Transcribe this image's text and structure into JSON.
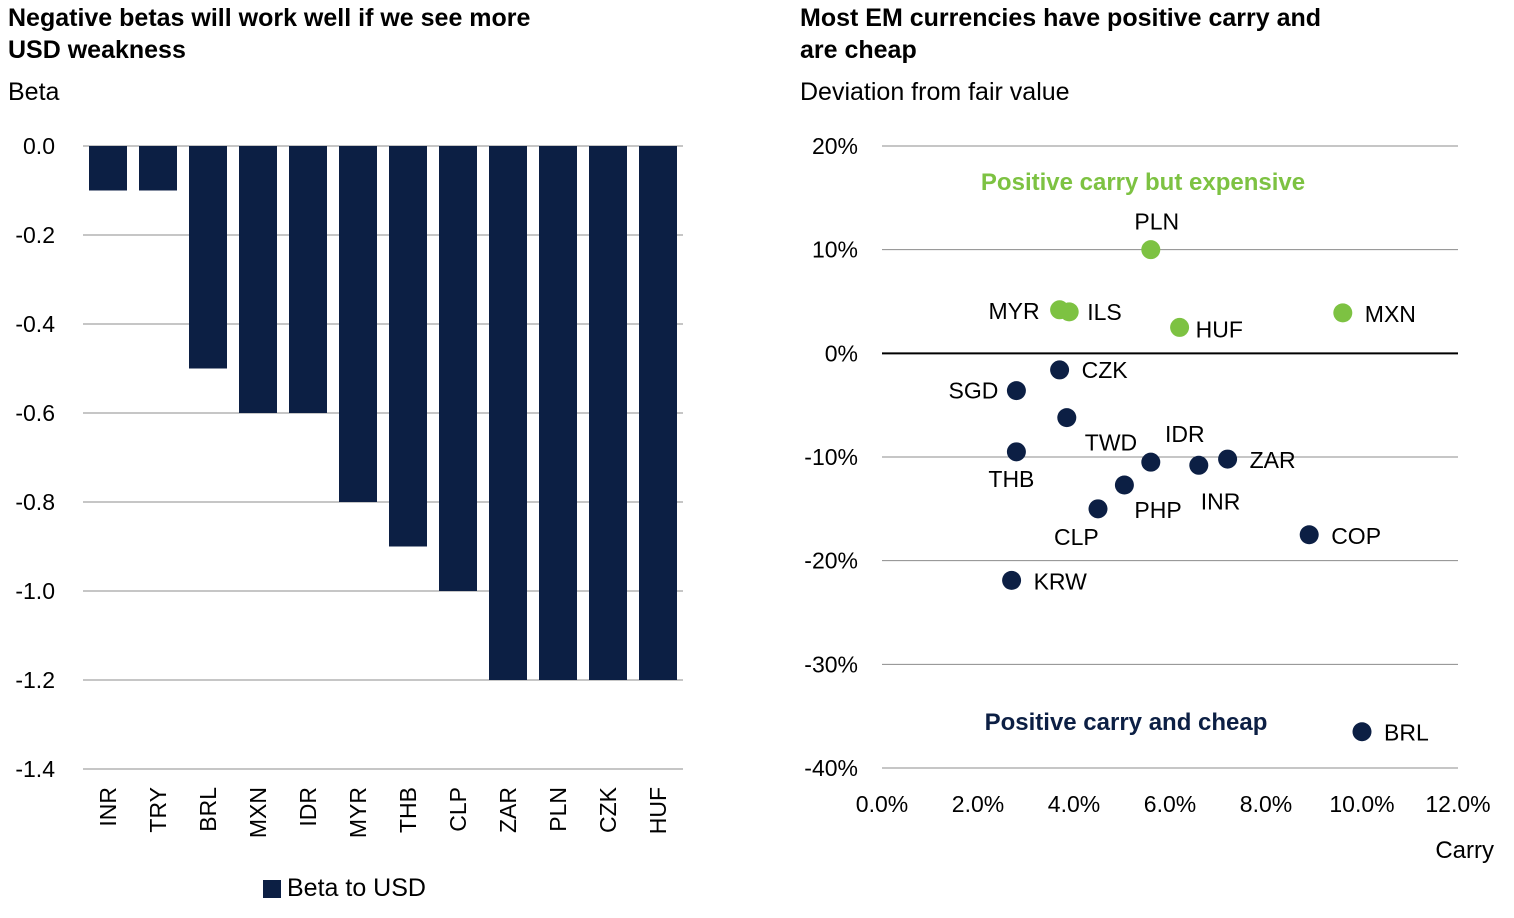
{
  "colors": {
    "navy": "#0c1f44",
    "green": "#7dc242",
    "grid": "#8c8c8c",
    "axis": "#000000"
  },
  "chart_data": [
    {
      "type": "bar",
      "title": "Negative betas will work well if we see more USD weakness",
      "title_lines": [
        "Negative betas will work well if we see more",
        "USD weakness"
      ],
      "ylabel": "Beta",
      "xlabel": "",
      "categories": [
        "INR",
        "TRY",
        "BRL",
        "MXN",
        "IDR",
        "MYR",
        "THB",
        "CLP",
        "ZAR",
        "PLN",
        "CZK",
        "HUF"
      ],
      "series": [
        {
          "name": "Beta to USD",
          "values": [
            -0.1,
            -0.1,
            -0.5,
            -0.6,
            -0.6,
            -0.8,
            -0.9,
            -1.0,
            -1.2,
            -1.2,
            -1.2,
            -1.2
          ]
        }
      ],
      "ylim": [
        -1.4,
        0.0
      ],
      "yticks": [
        0.0,
        -0.2,
        -0.4,
        -0.6,
        -0.8,
        -1.0,
        -1.2,
        -1.4
      ],
      "ytick_labels": [
        "0.0",
        "-0.2",
        "-0.4",
        "-0.6",
        "-0.8",
        "-1.0",
        "-1.2",
        "-1.4"
      ],
      "grid": true,
      "legend": {
        "entries": [
          "Beta to USD"
        ],
        "placement": "bottom"
      }
    },
    {
      "type": "scatter",
      "title": "Most EM currencies have positive carry and are cheap",
      "title_lines": [
        "Most EM currencies have positive carry and",
        "are cheap"
      ],
      "ylabel": "Deviation from fair value",
      "xlabel": "Carry",
      "xlim": [
        0,
        12
      ],
      "ylim": [
        -40,
        20
      ],
      "xticks": [
        0,
        2,
        4,
        6,
        8,
        10,
        12
      ],
      "xtick_labels": [
        "0.0%",
        "2.0%",
        "4.0%",
        "6.0%",
        "8.0%",
        "10.0%",
        "12.0%"
      ],
      "yticks": [
        20,
        10,
        0,
        -10,
        -20,
        -30,
        -40
      ],
      "ytick_labels": [
        "20%",
        "10%",
        "0%",
        "-10%",
        "-20%",
        "-30%",
        "-40%"
      ],
      "grid": true,
      "annotations": [
        {
          "text": "Positive carry but expensive",
          "group": "expensive"
        },
        {
          "text": "Positive carry and cheap",
          "group": "cheap"
        }
      ],
      "points": [
        {
          "label": "PLN",
          "x": 5.6,
          "y": 10.0,
          "group": "expensive"
        },
        {
          "label": "MYR",
          "x": 3.7,
          "y": 4.2,
          "group": "expensive"
        },
        {
          "label": "ILS",
          "x": 3.9,
          "y": 4.0,
          "group": "expensive"
        },
        {
          "label": "HUF",
          "x": 6.2,
          "y": 2.5,
          "group": "expensive"
        },
        {
          "label": "MXN",
          "x": 9.6,
          "y": 3.9,
          "group": "expensive"
        },
        {
          "label": "CZK",
          "x": 3.7,
          "y": -1.6,
          "group": "cheap"
        },
        {
          "label": "SGD",
          "x": 2.8,
          "y": -3.6,
          "group": "cheap"
        },
        {
          "label": "TWD",
          "x": 3.85,
          "y": -6.2,
          "group": "cheap"
        },
        {
          "label": "THB",
          "x": 2.8,
          "y": -9.5,
          "group": "cheap"
        },
        {
          "label": "IDR",
          "x": 5.6,
          "y": -10.5,
          "group": "cheap"
        },
        {
          "label": "ZAR",
          "x": 7.2,
          "y": -10.2,
          "group": "cheap"
        },
        {
          "label": "INR",
          "x": 6.6,
          "y": -10.8,
          "group": "cheap"
        },
        {
          "label": "PHP",
          "x": 5.05,
          "y": -12.7,
          "group": "cheap"
        },
        {
          "label": "CLP",
          "x": 4.5,
          "y": -15.0,
          "group": "cheap"
        },
        {
          "label": "COP",
          "x": 8.9,
          "y": -17.5,
          "group": "cheap"
        },
        {
          "label": "KRW",
          "x": 2.7,
          "y": -21.9,
          "group": "cheap"
        },
        {
          "label": "BRL",
          "x": 10.0,
          "y": -36.5,
          "group": "cheap"
        }
      ]
    }
  ]
}
